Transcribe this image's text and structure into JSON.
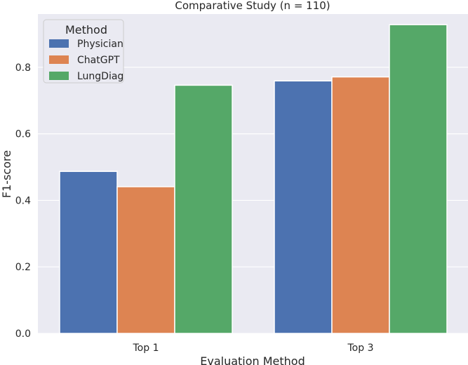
{
  "chart_data": {
    "type": "bar",
    "title": "Comparative Study (n = 110)",
    "xlabel": "Evaluation Method",
    "ylabel": "F1-score",
    "categories": [
      "Top 1",
      "Top 3"
    ],
    "series": [
      {
        "name": "Physician",
        "values": [
          0.487,
          0.759
        ],
        "color": "#4c72b0"
      },
      {
        "name": "ChatGPT",
        "values": [
          0.441,
          0.771
        ],
        "color": "#dd8452"
      },
      {
        "name": "LungDiag",
        "values": [
          0.746,
          0.928
        ],
        "color": "#55a868"
      }
    ],
    "ylim": [
      0.0,
      0.96
    ],
    "yticks": [
      "0.0",
      "0.2",
      "0.4",
      "0.6",
      "0.8"
    ],
    "grid": true,
    "legend": {
      "title": "Method",
      "placement": "upper-left"
    },
    "colors": {
      "background": "#eaeaf2",
      "grid": "#ffffff",
      "text": "#262626"
    }
  }
}
